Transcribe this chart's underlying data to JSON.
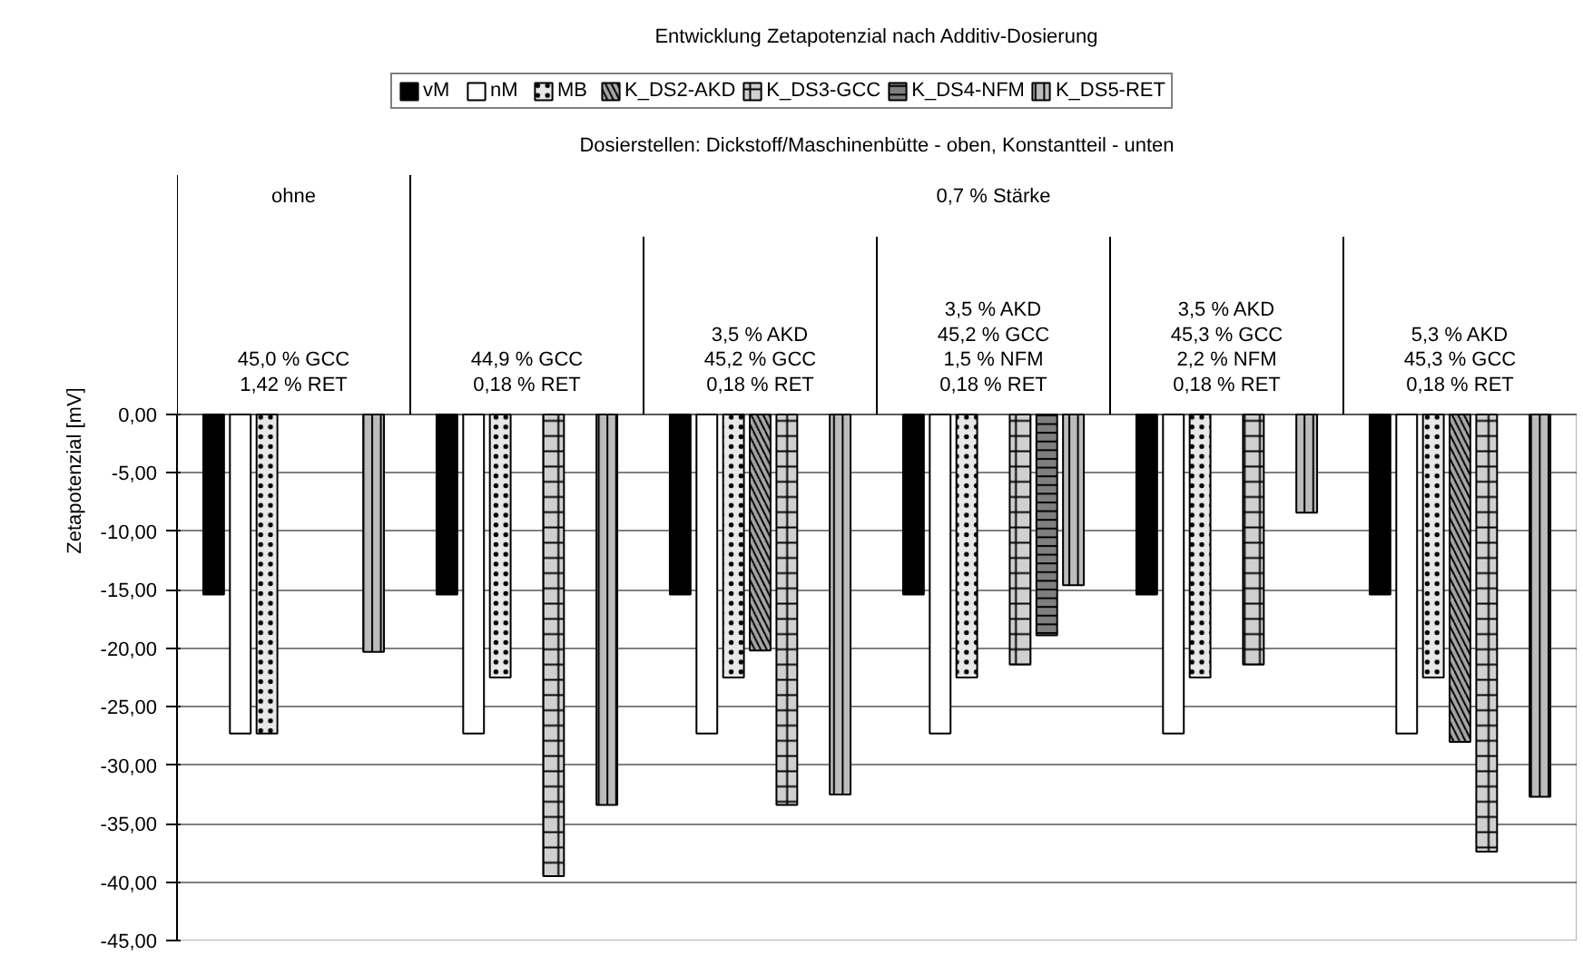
{
  "chart_data": {
    "type": "bar",
    "title": "Entwicklung Zetapotenzial nach Additiv-Dosierung",
    "ylabel": "Zetapotenzial [mV]",
    "annotations": [
      "Dosierstellen: Dickstoff/Maschinenbütte - oben, Konstantteil - unten",
      "ohne",
      "0,7 % Stärke"
    ],
    "categories": [
      "45,0 % GCC\n1,42 % RET",
      "44,9 % GCC\n0,18 % RET",
      "3,5 % AKD\n45,2 % GCC\n0,18 % RET",
      "3,5 % AKD\n45,2 % GCC\n1,5 % NFM\n0,18 % RET",
      "3,5 % AKD\n45,3 % GCC\n2,2 % NFM\n0,18 % RET",
      "5,3 % AKD\n45,3 % GCC\n0,18 % RET"
    ],
    "series": [
      {
        "name": "vM",
        "color": "#000000",
        "values": [
          -15.4,
          -15.4,
          -15.4,
          -15.4,
          -15.4,
          -15.4
        ]
      },
      {
        "name": "nM",
        "color": "#ffffff",
        "values": [
          -27.3,
          -27.3,
          -27.3,
          -27.3,
          -27.3,
          -27.3
        ]
      },
      {
        "name": "MB",
        "color": "#e8e8e8",
        "values": [
          -27.3,
          -22.5,
          -22.5,
          -22.5,
          -22.5,
          -22.5
        ]
      },
      {
        "name": "K_DS2-AKD",
        "color": "#a6a6a6",
        "values": [
          null,
          null,
          -20.2,
          null,
          null,
          -28.0
        ]
      },
      {
        "name": "K_DS3-GCC",
        "color": "#d0d0d0",
        "values": [
          null,
          -39.5,
          -33.4,
          -21.4,
          -21.4,
          -37.4
        ]
      },
      {
        "name": "K_DS4-NFM",
        "color": "#7f7f7f",
        "values": [
          null,
          null,
          null,
          -18.9,
          null,
          null
        ]
      },
      {
        "name": "K_DS5-RET",
        "color": "#bcbcbc",
        "values": [
          -20.3,
          -33.4,
          -32.5,
          -14.6,
          -8.4,
          -32.7
        ]
      }
    ],
    "ylim": [
      -45,
      0
    ],
    "yticks": [
      {
        "value": 0,
        "label": "0,00"
      },
      {
        "value": -5,
        "label": "-5,00"
      },
      {
        "value": -10,
        "label": "-10,00"
      },
      {
        "value": -15,
        "label": "-15,00"
      },
      {
        "value": -20,
        "label": "-20,00"
      },
      {
        "value": -25,
        "label": "-25,00"
      },
      {
        "value": -30,
        "label": "-30,00"
      },
      {
        "value": -35,
        "label": "-35,00"
      },
      {
        "value": -40,
        "label": "-40,00"
      },
      {
        "value": -45,
        "label": "-45,00"
      }
    ],
    "grid": "y",
    "legend": "top"
  }
}
